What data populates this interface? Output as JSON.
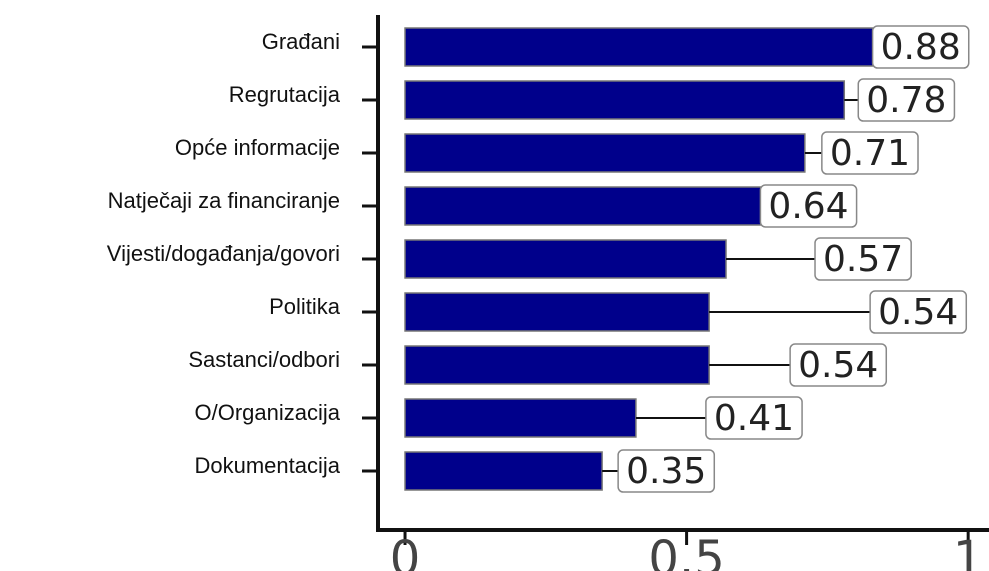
{
  "chart_data": {
    "type": "barh",
    "categories": [
      "Građani",
      "Regrutacija",
      "Opće informacije",
      "Natječaji za financiranje",
      "Vijesti/događanja/govori",
      "Politika",
      "Sastanci/odbori",
      "O/Organizacija",
      "Dokumentacija"
    ],
    "values": [
      0.88,
      0.78,
      0.71,
      0.64,
      0.57,
      0.54,
      0.54,
      0.41,
      0.35
    ],
    "color": "#00008b",
    "xlim": [
      -0.048,
      1.037
    ],
    "xticks": [
      0,
      0.5,
      1
    ],
    "grid": false
  }
}
